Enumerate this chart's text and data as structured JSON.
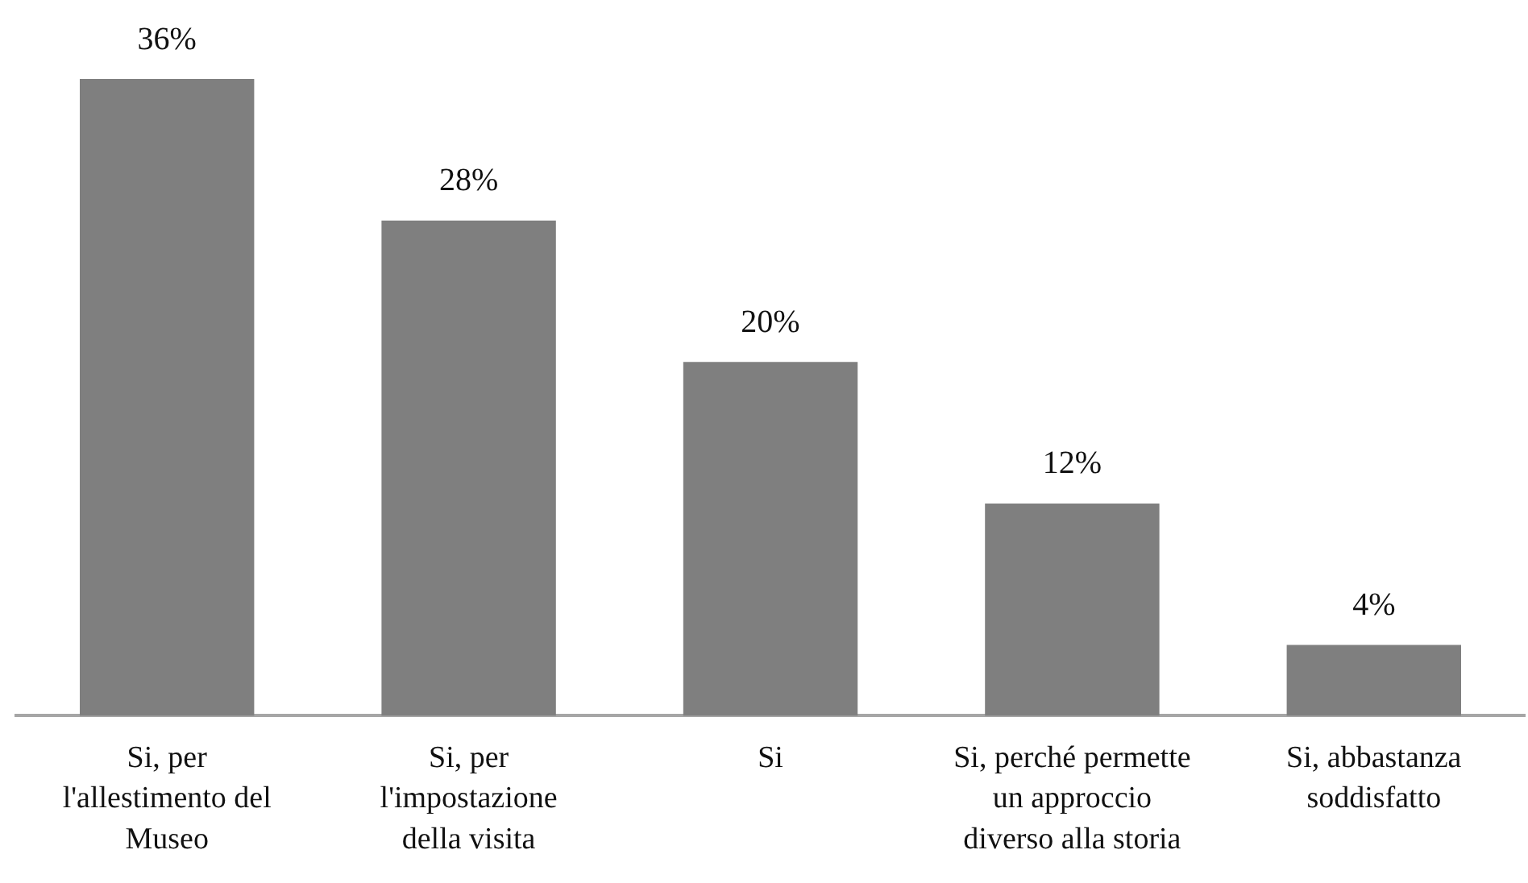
{
  "chart_data": {
    "type": "bar",
    "categories": [
      "Si, per l'allestimento del Museo",
      "Si, per l'impostazione della visita",
      "Si",
      "Si, perché permette un approccio diverso alla storia",
      "Si, abbastanza soddisfatto"
    ],
    "values": [
      36,
      28,
      20,
      12,
      4
    ],
    "value_labels": [
      "36%",
      "28%",
      "20%",
      "12%",
      "4%"
    ],
    "color": "#7f7f7f"
  }
}
